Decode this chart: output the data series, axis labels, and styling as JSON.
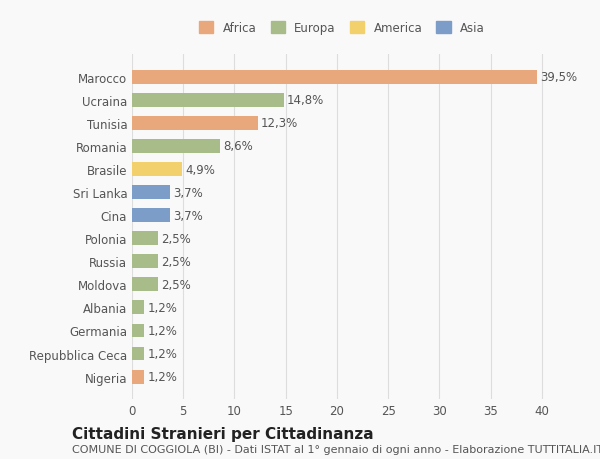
{
  "countries": [
    "Marocco",
    "Ucraina",
    "Tunisia",
    "Romania",
    "Brasile",
    "Sri Lanka",
    "Cina",
    "Polonia",
    "Russia",
    "Moldova",
    "Albania",
    "Germania",
    "Repubblica Ceca",
    "Nigeria"
  ],
  "values": [
    39.5,
    14.8,
    12.3,
    8.6,
    4.9,
    3.7,
    3.7,
    2.5,
    2.5,
    2.5,
    1.2,
    1.2,
    1.2,
    1.2
  ],
  "labels": [
    "39,5%",
    "14,8%",
    "12,3%",
    "8,6%",
    "4,9%",
    "3,7%",
    "3,7%",
    "2,5%",
    "2,5%",
    "2,5%",
    "1,2%",
    "1,2%",
    "1,2%",
    "1,2%"
  ],
  "colors": [
    "#E8A87C",
    "#A8BC8A",
    "#E8A87C",
    "#A8BC8A",
    "#F2D06B",
    "#7B9DC8",
    "#7B9DC8",
    "#A8BC8A",
    "#A8BC8A",
    "#A8BC8A",
    "#A8BC8A",
    "#A8BC8A",
    "#A8BC8A",
    "#E8A87C"
  ],
  "legend_labels": [
    "Africa",
    "Europa",
    "America",
    "Asia"
  ],
  "legend_colors": [
    "#E8A87C",
    "#A8BC8A",
    "#F2D06B",
    "#7B9DC8"
  ],
  "title": "Cittadini Stranieri per Cittadinanza",
  "subtitle": "COMUNE DI COGGIOLA (BI) - Dati ISTAT al 1° gennaio di ogni anno - Elaborazione TUTTITALIA.IT",
  "xlim": [
    0,
    41
  ],
  "xticks": [
    0,
    5,
    10,
    15,
    20,
    25,
    30,
    35,
    40
  ],
  "background_color": "#f9f9f9",
  "grid_color": "#dddddd",
  "bar_height": 0.6,
  "label_fontsize": 8.5,
  "tick_fontsize": 8.5,
  "title_fontsize": 11,
  "subtitle_fontsize": 8
}
